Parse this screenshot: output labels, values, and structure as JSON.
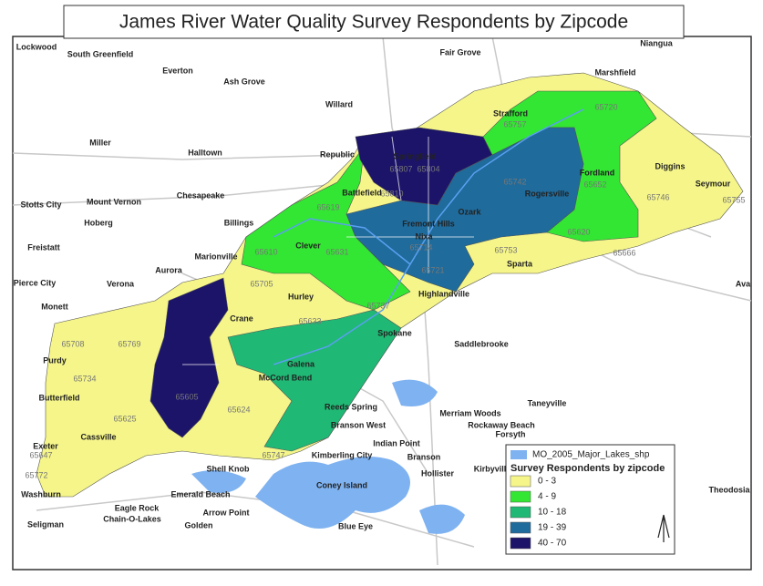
{
  "title": "James River Water Quality Survey Respondents by Zipcode",
  "legend": {
    "layer": {
      "label": "MO_2005_Major_Lakes_shp",
      "color": "#7fb2f0"
    },
    "title": "Survey Respondents by zipcode",
    "classes": [
      {
        "label": "0 - 3",
        "color": "#f5f58a"
      },
      {
        "label": "4 - 9",
        "color": "#33e633"
      },
      {
        "label": "10 - 18",
        "color": "#1fb874"
      },
      {
        "label": "19 - 39",
        "color": "#1f6b9c"
      },
      {
        "label": "40 - 70",
        "color": "#1c1468"
      }
    ]
  },
  "places": [
    "Lockwood",
    "South Greenfield",
    "Everton",
    "Ash Grove",
    "Willard",
    "Fair Grove",
    "Niangua",
    "Marshfield",
    "Strafford",
    "Miller",
    "Halltown",
    "Republic",
    "Springfield",
    "Fordland",
    "Diggins",
    "Seymour",
    "Stotts City",
    "Mount Vernon",
    "Chesapeake",
    "Battlefield",
    "Ozark",
    "Rogersville",
    "Hoberg",
    "Billings",
    "Fremont Hills",
    "Freistatt",
    "Marionville",
    "Clever",
    "Nixa",
    "Sparta",
    "Aurora",
    "Verona",
    "Pierce City",
    "Hurley",
    "Highlandville",
    "Ava",
    "Monett",
    "Crane",
    "Spokane",
    "Saddlebrooke",
    "Purdy",
    "Galena",
    "McCord Bend",
    "Butterfield",
    "Reeds Spring",
    "Merriam Woods",
    "Taneyville",
    "Branson West",
    "Rockaway Beach",
    "Forsyth",
    "Cassville",
    "Indian Point",
    "Exeter",
    "Branson",
    "Kimberling City",
    "Hollister",
    "Kirbyville",
    "Washburn",
    "Shell Knob",
    "Coney Island",
    "Theodosia",
    "Emerald Beach",
    "Eagle Rock",
    "Chain-O-Lakes",
    "Arrow Point",
    "Golden",
    "Seligman",
    "Blue Eye"
  ],
  "zipcodes": [
    "65757",
    "65720",
    "65807",
    "65804",
    "65810",
    "65742",
    "65652",
    "65746",
    "65755",
    "65619",
    "65714",
    "65721",
    "65610",
    "65631",
    "65753",
    "65620",
    "65666",
    "65705",
    "65633",
    "65737",
    "65708",
    "65769",
    "65734",
    "65605",
    "65624",
    "65625",
    "65647",
    "65772",
    "65747"
  ]
}
